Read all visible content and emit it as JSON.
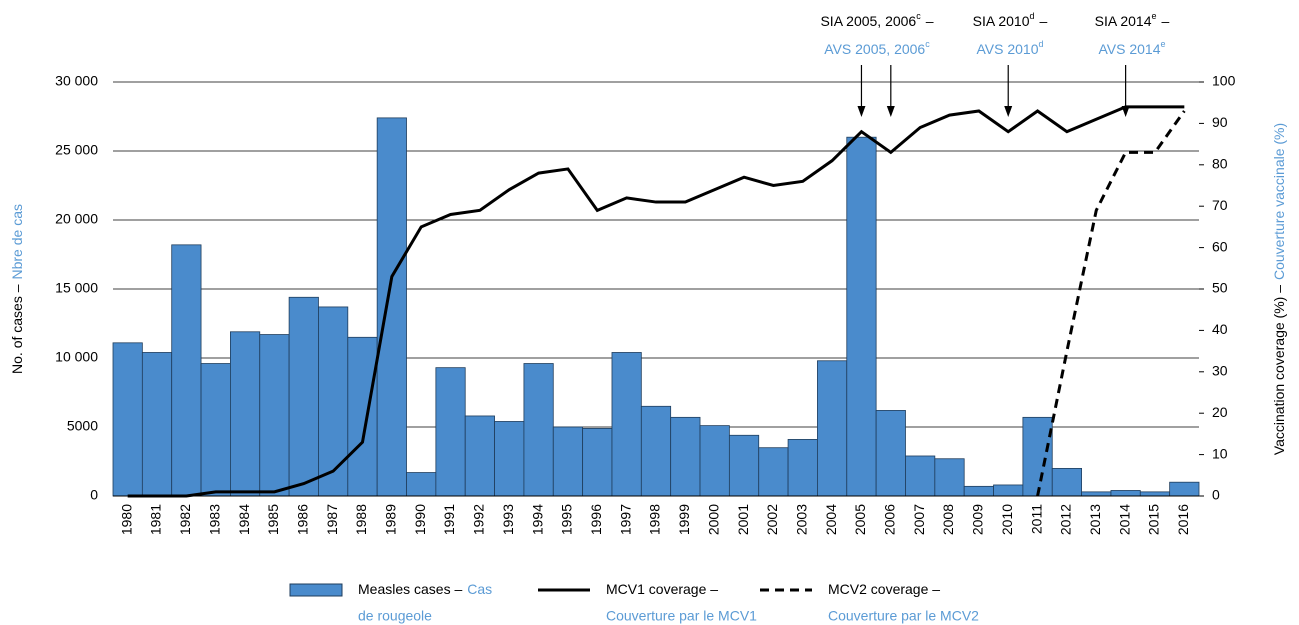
{
  "chart_data": {
    "type": "bar_line",
    "y_label": [
      "No. of cases –",
      "Nbre de cas"
    ],
    "y2_label": [
      "Vaccination coverage (%) –",
      "Couverture vaccinale (%)"
    ],
    "categories": [
      "1980",
      "1981",
      "1982",
      "1983",
      "1984",
      "1985",
      "1986",
      "1987",
      "1988",
      "1989",
      "1990",
      "1991",
      "1992",
      "1993",
      "1994",
      "1995",
      "1996",
      "1997",
      "1998",
      "1999",
      "2000",
      "2001",
      "2002",
      "2003",
      "2004",
      "2005",
      "2006",
      "2007",
      "2008",
      "2009",
      "2010",
      "2011",
      "2012",
      "2013",
      "2014",
      "2015",
      "2016"
    ],
    "series": [
      {
        "name": "Measles cases –",
        "name_fr": [
          "Cas",
          "de rougeole"
        ],
        "type": "bar",
        "color": "#4a8bcc",
        "values": [
          11100,
          10400,
          18200,
          9600,
          11900,
          11700,
          14400,
          13700,
          11500,
          27400,
          1700,
          9300,
          5800,
          5400,
          9600,
          5000,
          4900,
          10400,
          6500,
          5700,
          5100,
          4400,
          3500,
          4100,
          9800,
          26000,
          6200,
          2900,
          2700,
          700,
          800,
          5700,
          2000,
          300,
          400,
          300,
          1000
        ]
      },
      {
        "name": "MCV1 coverage –",
        "name_fr": [
          "Couverture par le MCV1"
        ],
        "type": "line",
        "axis": "y2",
        "color": "#000000",
        "dash": false,
        "values": [
          0,
          0,
          0,
          1,
          1,
          1,
          3,
          6,
          13,
          53,
          65,
          68,
          69,
          74,
          78,
          79,
          69,
          72,
          71,
          71,
          74,
          77,
          75,
          76,
          81,
          88,
          83,
          89,
          92,
          93,
          88,
          93,
          88,
          91,
          94,
          94,
          94
        ]
      },
      {
        "name": "MCV2 coverage –",
        "name_fr": [
          "Couverture par le MCV2"
        ],
        "type": "line",
        "axis": "y2",
        "color": "#000000",
        "dash": true,
        "values": [
          null,
          null,
          null,
          null,
          null,
          null,
          null,
          null,
          null,
          null,
          null,
          null,
          null,
          null,
          null,
          null,
          null,
          null,
          null,
          null,
          null,
          null,
          null,
          null,
          null,
          null,
          null,
          null,
          null,
          null,
          null,
          0,
          35,
          69,
          83,
          83,
          93
        ]
      }
    ],
    "ylim": [
      0,
      30000
    ],
    "yticks": [
      0,
      5000,
      {
        "value": 10000,
        "label": "10 000"
      },
      {
        "value": 15000,
        "label": "15 000"
      },
      {
        "value": 20000,
        "label": "20 000"
      },
      {
        "value": 25000,
        "label": "25 000"
      },
      {
        "value": 30000,
        "label": "30 000"
      }
    ],
    "y2lim": [
      0,
      100
    ],
    "y2ticks": [
      0,
      10,
      20,
      30,
      40,
      50,
      60,
      70,
      80,
      90,
      100
    ],
    "grid": true,
    "annotations": [
      {
        "label": "SIA 2005, 2006",
        "sup": "c",
        "dash": "–",
        "label_fr": "AVS 2005, 2006",
        "sup_fr": "c"
      },
      {
        "label": "SIA 2010",
        "sup": "d",
        "dash": "–",
        "label_fr": "AVS 2010",
        "sup_fr": "d"
      },
      {
        "label": "SIA 2014",
        "sup": "e",
        "dash": "–",
        "label_fr": "AVS 2014",
        "sup_fr": "e"
      }
    ]
  }
}
